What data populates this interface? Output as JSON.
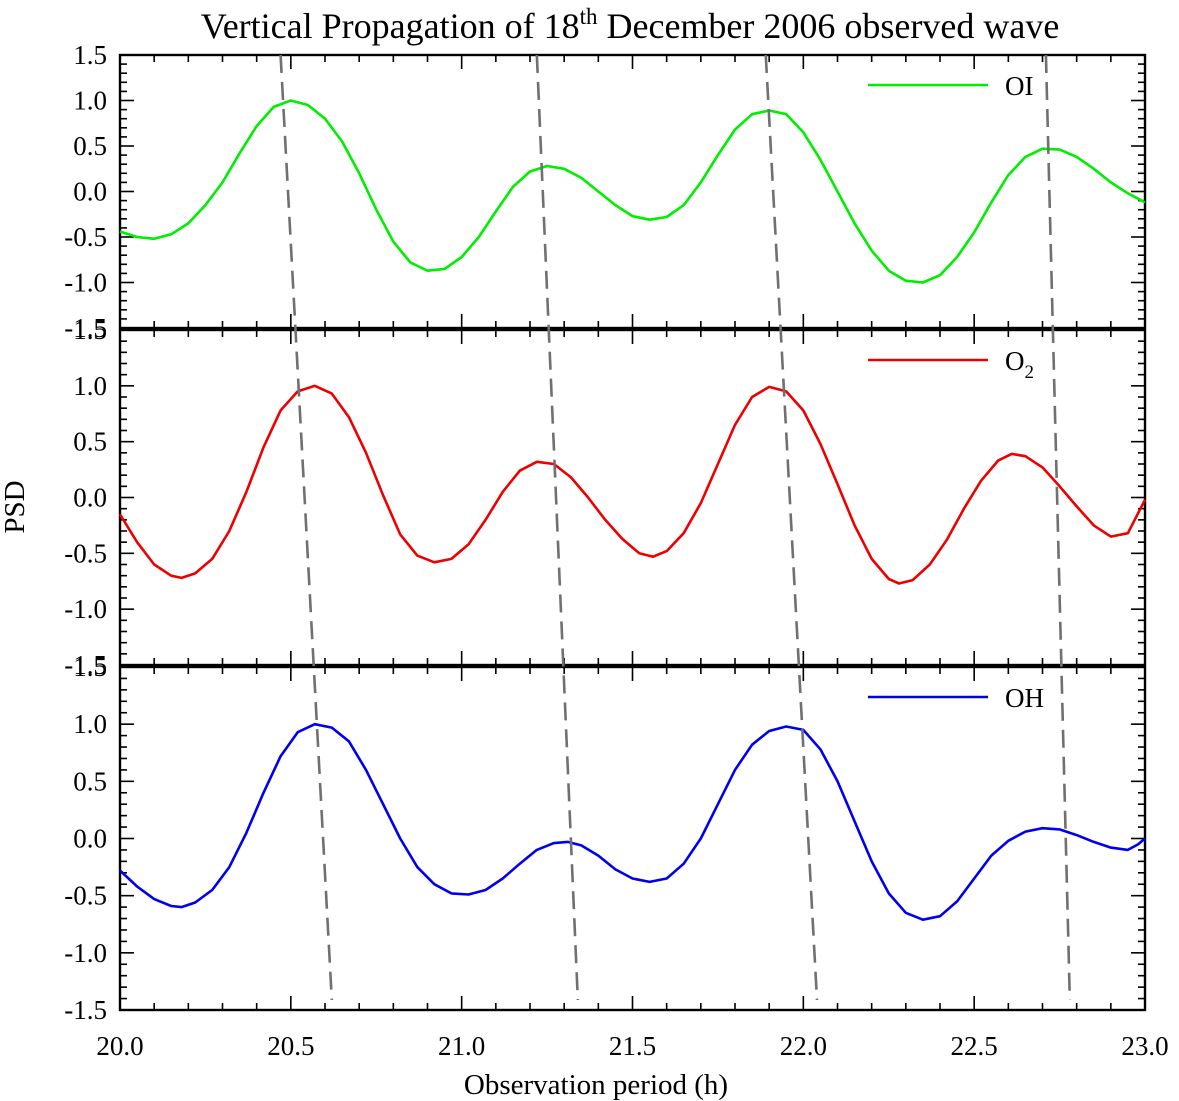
{
  "chart_data": {
    "type": "line",
    "title": {
      "prefix": "Vertical Propagation of 18",
      "superscript": "th",
      "suffix": " December 2006  observed wave"
    },
    "xlabel": "Observation period (h)",
    "ylabel": "PSD",
    "xlim": [
      20.0,
      23.0
    ],
    "ylim": [
      -1.5,
      1.5
    ],
    "x_ticks": [
      "20.0",
      "20.5",
      "21.0",
      "21.5",
      "22.0",
      "22.5",
      "23.0"
    ],
    "y_ticks": [
      "-1.5",
      "-1.0",
      "-0.5",
      "0.0",
      "0.5",
      "1.0",
      "1.5"
    ],
    "grid": false,
    "legend_position": "top-right",
    "panels": [
      {
        "name": "OI",
        "legend": {
          "main": "OI",
          "sub": ""
        },
        "color": "#00ee00",
        "points": [
          [
            20.0,
            -0.44
          ],
          [
            20.05,
            -0.5
          ],
          [
            20.1,
            -0.52
          ],
          [
            20.15,
            -0.47
          ],
          [
            20.2,
            -0.35
          ],
          [
            20.25,
            -0.15
          ],
          [
            20.3,
            0.1
          ],
          [
            20.35,
            0.42
          ],
          [
            20.4,
            0.72
          ],
          [
            20.45,
            0.93
          ],
          [
            20.5,
            1.0
          ],
          [
            20.55,
            0.95
          ],
          [
            20.6,
            0.8
          ],
          [
            20.65,
            0.55
          ],
          [
            20.7,
            0.2
          ],
          [
            20.75,
            -0.2
          ],
          [
            20.8,
            -0.55
          ],
          [
            20.85,
            -0.78
          ],
          [
            20.9,
            -0.87
          ],
          [
            20.95,
            -0.85
          ],
          [
            21.0,
            -0.72
          ],
          [
            21.05,
            -0.5
          ],
          [
            21.1,
            -0.22
          ],
          [
            21.15,
            0.05
          ],
          [
            21.2,
            0.22
          ],
          [
            21.25,
            0.28
          ],
          [
            21.3,
            0.25
          ],
          [
            21.35,
            0.15
          ],
          [
            21.4,
            0.0
          ],
          [
            21.45,
            -0.15
          ],
          [
            21.5,
            -0.27
          ],
          [
            21.55,
            -0.31
          ],
          [
            21.6,
            -0.28
          ],
          [
            21.65,
            -0.15
          ],
          [
            21.7,
            0.1
          ],
          [
            21.75,
            0.4
          ],
          [
            21.8,
            0.68
          ],
          [
            21.85,
            0.85
          ],
          [
            21.9,
            0.89
          ],
          [
            21.95,
            0.85
          ],
          [
            22.0,
            0.65
          ],
          [
            22.05,
            0.35
          ],
          [
            22.1,
            0.0
          ],
          [
            22.15,
            -0.35
          ],
          [
            22.2,
            -0.65
          ],
          [
            22.25,
            -0.87
          ],
          [
            22.3,
            -0.98
          ],
          [
            22.35,
            -1.0
          ],
          [
            22.4,
            -0.92
          ],
          [
            22.45,
            -0.72
          ],
          [
            22.5,
            -0.45
          ],
          [
            22.55,
            -0.12
          ],
          [
            22.6,
            0.18
          ],
          [
            22.65,
            0.38
          ],
          [
            22.7,
            0.47
          ],
          [
            22.75,
            0.46
          ],
          [
            22.8,
            0.38
          ],
          [
            22.85,
            0.25
          ],
          [
            22.9,
            0.1
          ],
          [
            22.95,
            -0.02
          ],
          [
            23.0,
            -0.12
          ]
        ]
      },
      {
        "name": "O2",
        "legend": {
          "main": "O",
          "sub": "2"
        },
        "color": "#ee0000",
        "points": [
          [
            20.0,
            -0.15
          ],
          [
            20.05,
            -0.4
          ],
          [
            20.1,
            -0.6
          ],
          [
            20.15,
            -0.7
          ],
          [
            20.18,
            -0.72
          ],
          [
            20.22,
            -0.68
          ],
          [
            20.27,
            -0.55
          ],
          [
            20.32,
            -0.3
          ],
          [
            20.37,
            0.05
          ],
          [
            20.42,
            0.45
          ],
          [
            20.47,
            0.78
          ],
          [
            20.52,
            0.95
          ],
          [
            20.57,
            1.0
          ],
          [
            20.62,
            0.93
          ],
          [
            20.67,
            0.72
          ],
          [
            20.72,
            0.4
          ],
          [
            20.77,
            0.02
          ],
          [
            20.82,
            -0.33
          ],
          [
            20.87,
            -0.52
          ],
          [
            20.92,
            -0.58
          ],
          [
            20.97,
            -0.55
          ],
          [
            21.02,
            -0.42
          ],
          [
            21.07,
            -0.2
          ],
          [
            21.12,
            0.05
          ],
          [
            21.17,
            0.24
          ],
          [
            21.22,
            0.32
          ],
          [
            21.27,
            0.3
          ],
          [
            21.32,
            0.18
          ],
          [
            21.37,
            0.0
          ],
          [
            21.42,
            -0.2
          ],
          [
            21.47,
            -0.37
          ],
          [
            21.52,
            -0.5
          ],
          [
            21.56,
            -0.53
          ],
          [
            21.6,
            -0.48
          ],
          [
            21.65,
            -0.32
          ],
          [
            21.7,
            -0.05
          ],
          [
            21.75,
            0.3
          ],
          [
            21.8,
            0.65
          ],
          [
            21.85,
            0.9
          ],
          [
            21.9,
            0.99
          ],
          [
            21.95,
            0.95
          ],
          [
            22.0,
            0.78
          ],
          [
            22.05,
            0.48
          ],
          [
            22.1,
            0.12
          ],
          [
            22.15,
            -0.25
          ],
          [
            22.2,
            -0.55
          ],
          [
            22.25,
            -0.73
          ],
          [
            22.28,
            -0.77
          ],
          [
            22.32,
            -0.74
          ],
          [
            22.37,
            -0.6
          ],
          [
            22.42,
            -0.38
          ],
          [
            22.47,
            -0.1
          ],
          [
            22.52,
            0.15
          ],
          [
            22.57,
            0.33
          ],
          [
            22.61,
            0.39
          ],
          [
            22.65,
            0.37
          ],
          [
            22.7,
            0.27
          ],
          [
            22.75,
            0.1
          ],
          [
            22.8,
            -0.08
          ],
          [
            22.85,
            -0.25
          ],
          [
            22.9,
            -0.35
          ],
          [
            22.95,
            -0.32
          ],
          [
            23.0,
            -0.02
          ]
        ]
      },
      {
        "name": "OH",
        "legend": {
          "main": "OH",
          "sub": ""
        },
        "color": "#0000ee",
        "points": [
          [
            20.0,
            -0.28
          ],
          [
            20.05,
            -0.42
          ],
          [
            20.1,
            -0.53
          ],
          [
            20.15,
            -0.59
          ],
          [
            20.18,
            -0.6
          ],
          [
            20.22,
            -0.56
          ],
          [
            20.27,
            -0.45
          ],
          [
            20.32,
            -0.25
          ],
          [
            20.37,
            0.05
          ],
          [
            20.42,
            0.4
          ],
          [
            20.47,
            0.72
          ],
          [
            20.52,
            0.93
          ],
          [
            20.57,
            1.0
          ],
          [
            20.62,
            0.97
          ],
          [
            20.67,
            0.85
          ],
          [
            20.72,
            0.6
          ],
          [
            20.77,
            0.3
          ],
          [
            20.82,
            0.0
          ],
          [
            20.87,
            -0.25
          ],
          [
            20.92,
            -0.4
          ],
          [
            20.97,
            -0.48
          ],
          [
            21.02,
            -0.49
          ],
          [
            21.07,
            -0.45
          ],
          [
            21.12,
            -0.35
          ],
          [
            21.17,
            -0.22
          ],
          [
            21.22,
            -0.1
          ],
          [
            21.27,
            -0.04
          ],
          [
            21.31,
            -0.03
          ],
          [
            21.35,
            -0.06
          ],
          [
            21.4,
            -0.15
          ],
          [
            21.45,
            -0.27
          ],
          [
            21.5,
            -0.35
          ],
          [
            21.55,
            -0.38
          ],
          [
            21.6,
            -0.35
          ],
          [
            21.65,
            -0.22
          ],
          [
            21.7,
            0.0
          ],
          [
            21.75,
            0.3
          ],
          [
            21.8,
            0.6
          ],
          [
            21.85,
            0.82
          ],
          [
            21.9,
            0.94
          ],
          [
            21.95,
            0.98
          ],
          [
            22.0,
            0.95
          ],
          [
            22.05,
            0.78
          ],
          [
            22.1,
            0.5
          ],
          [
            22.15,
            0.15
          ],
          [
            22.2,
            -0.2
          ],
          [
            22.25,
            -0.48
          ],
          [
            22.3,
            -0.65
          ],
          [
            22.35,
            -0.71
          ],
          [
            22.4,
            -0.68
          ],
          [
            22.45,
            -0.55
          ],
          [
            22.5,
            -0.35
          ],
          [
            22.55,
            -0.15
          ],
          [
            22.6,
            -0.02
          ],
          [
            22.65,
            0.06
          ],
          [
            22.7,
            0.09
          ],
          [
            22.75,
            0.08
          ],
          [
            22.8,
            0.03
          ],
          [
            22.85,
            -0.03
          ],
          [
            22.9,
            -0.08
          ],
          [
            22.95,
            -0.1
          ],
          [
            22.98,
            -0.05
          ],
          [
            23.0,
            0.0
          ]
        ]
      }
    ],
    "phase_lines": [
      {
        "top": 20.47,
        "bottom": 20.62
      },
      {
        "top": 21.22,
        "bottom": 21.34
      },
      {
        "top": 21.89,
        "bottom": 22.04
      },
      {
        "top": 22.71,
        "bottom": 22.78
      }
    ],
    "phase_line_color": "#707070",
    "axis_color": "#000000"
  }
}
